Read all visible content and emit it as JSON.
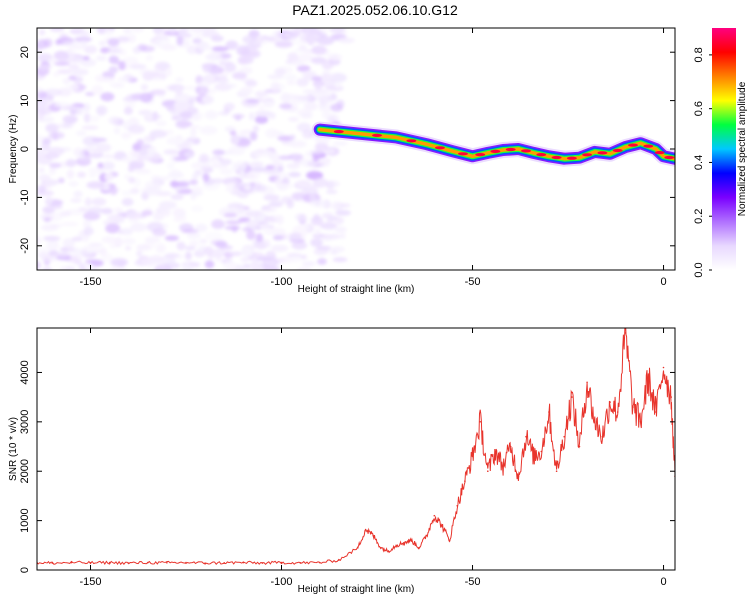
{
  "title": "PAZ1.2025.052.06.10.G12",
  "colors": {
    "signal": "#e8342c",
    "axis": "#000000"
  },
  "chart_data": [
    {
      "type": "heatmap",
      "xlabel": "Height of straight line (km)",
      "ylabel": "Frequency (Hz)",
      "xlim": [
        -164,
        3
      ],
      "ylim": [
        -25,
        25
      ],
      "x_ticks": [
        -150,
        -100,
        -50,
        0
      ],
      "y_ticks": [
        -20,
        -10,
        0,
        10,
        20
      ],
      "colorbar": {
        "label": "Normalized spectral amplitude",
        "range": [
          0,
          0.9
        ],
        "ticks": [
          "0.0",
          "0.2",
          "0.4",
          "0.6",
          "0.8"
        ],
        "colormap": [
          "#ffffff",
          "#e8d8ff",
          "#b070ff",
          "#7a00ff",
          "#0000ff",
          "#00c8ff",
          "#00ff40",
          "#ffff00",
          "#ff8000",
          "#ff0000",
          "#ff0080"
        ]
      },
      "noise_region": {
        "x_range": [
          -164,
          -84
        ],
        "y_range": [
          -25,
          25
        ],
        "amplitude": [
          0.02,
          0.12
        ]
      },
      "signal_ridge": {
        "x": [
          -90,
          -80,
          -70,
          -62,
          -55,
          -50,
          -46,
          -42,
          -38,
          -34,
          -30,
          -26,
          -22,
          -18,
          -14,
          -10,
          -6,
          -2,
          0,
          3
        ],
        "freq_hz": [
          4,
          3.2,
          2.4,
          1,
          -0.5,
          -1.5,
          -0.8,
          -0.2,
          0,
          -0.8,
          -1.5,
          -2,
          -1.8,
          -0.6,
          -1,
          0.4,
          1.2,
          0,
          -1.5,
          -2
        ],
        "peak_amplitude": 0.85
      }
    },
    {
      "type": "line",
      "xlabel": "Height of straight line (km)",
      "ylabel": "SNR (10 * v/v)",
      "xlim": [
        -164,
        3
      ],
      "ylim": [
        0,
        4900
      ],
      "x_ticks": [
        -150,
        -100,
        -50,
        0
      ],
      "y_ticks": [
        0,
        1000,
        2000,
        3000,
        4000
      ],
      "series": [
        {
          "x": [
            -164,
            -160,
            -155,
            -150,
            -145,
            -140,
            -135,
            -130,
            -125,
            -120,
            -115,
            -110,
            -105,
            -100,
            -95,
            -90,
            -85,
            -80,
            -78,
            -76,
            -74,
            -72,
            -70,
            -68,
            -66,
            -64,
            -62,
            -60,
            -58,
            -56,
            -54,
            -52,
            -50,
            -48,
            -46,
            -44,
            -42,
            -40,
            -38,
            -36,
            -34,
            -32,
            -30,
            -28,
            -26,
            -24,
            -22,
            -20,
            -18,
            -16,
            -14,
            -12,
            -10,
            -8,
            -6,
            -4,
            -2,
            0,
            2,
            3
          ],
          "y": [
            150,
            140,
            150,
            145,
            150,
            140,
            150,
            145,
            150,
            140,
            145,
            150,
            140,
            150,
            145,
            150,
            200,
            450,
            820,
            700,
            450,
            380,
            500,
            550,
            600,
            450,
            700,
            1100,
            900,
            600,
            1300,
            1800,
            2300,
            3000,
            2000,
            2400,
            2100,
            2500,
            1900,
            2700,
            2300,
            2400,
            3200,
            2000,
            2700,
            3500,
            2500,
            3800,
            3000,
            2700,
            3400,
            3200,
            4800,
            3300,
            3000,
            3900,
            3200,
            4100,
            3500,
            1900
          ]
        }
      ]
    }
  ]
}
